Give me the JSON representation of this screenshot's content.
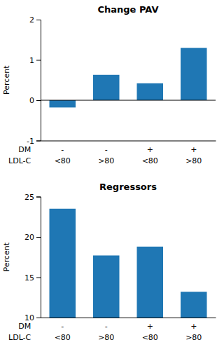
{
  "chart_data": [
    {
      "type": "bar",
      "title": "Change PAV",
      "ylabel": "Percent",
      "categories": [
        [
          "-",
          "<80"
        ],
        [
          "-",
          ">80"
        ],
        [
          "+",
          "<80"
        ],
        [
          "+",
          ">80"
        ]
      ],
      "annotations": [
        "DM",
        "LDL-C"
      ],
      "values": [
        -0.18,
        0.63,
        0.42,
        1.3
      ],
      "ylim": [
        -1.0,
        2.0
      ],
      "yticks": [
        -1,
        0,
        1,
        2
      ]
    },
    {
      "type": "bar",
      "title": "Regressors",
      "ylabel": "Percent",
      "categories": [
        [
          "-",
          "<80"
        ],
        [
          "-",
          ">80"
        ],
        [
          "+",
          "<80"
        ],
        [
          "+",
          ">80"
        ]
      ],
      "annotations": [
        "DM",
        "LDL-C"
      ],
      "values": [
        23.5,
        17.7,
        18.8,
        13.2
      ],
      "ylim": [
        10,
        25
      ],
      "yticks": [
        10,
        15,
        20,
        25
      ]
    }
  ]
}
